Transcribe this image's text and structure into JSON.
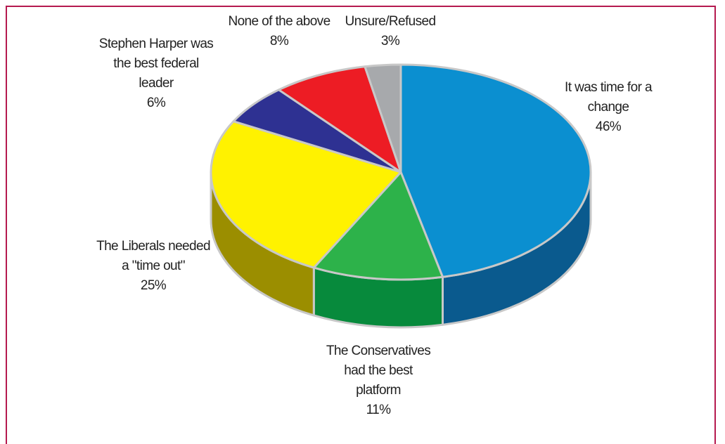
{
  "chart_data": {
    "type": "pie",
    "three_d": true,
    "start": "12 o'clock",
    "direction": "clockwise",
    "slices": [
      {
        "label_lines": [
          "It was time for a",
          "change"
        ],
        "value": 46,
        "value_label": "46%",
        "color": "#0b8fd0",
        "side_color": "#0a5a8e"
      },
      {
        "label_lines": [
          "The Conservatives",
          "had the best",
          "platform"
        ],
        "value": 11,
        "value_label": "11%",
        "color": "#2db24a",
        "side_color": "#078a3c"
      },
      {
        "label_lines": [
          "The Liberals needed",
          "a \"time out\""
        ],
        "value": 25,
        "value_label": "25%",
        "color": "#fff200",
        "side_color": "#9b8e00"
      },
      {
        "label_lines": [
          "Stephen Harper was",
          "the best federal",
          "leader"
        ],
        "value": 6,
        "value_label": "6%",
        "color": "#2e3192",
        "side_color": "#1c1f6a"
      },
      {
        "label_lines": [
          "None of the above"
        ],
        "value": 8,
        "value_label": "8%",
        "color": "#ed1c24",
        "side_color": "#a5141a"
      },
      {
        "label_lines": [
          "Unsure/Refused"
        ],
        "value": 3,
        "value_label": "3%",
        "color": "#a7a9ac",
        "side_color": "#6d6e71"
      }
    ],
    "separator_color": "#c8c8c8",
    "frame_color": "#b5194f"
  }
}
